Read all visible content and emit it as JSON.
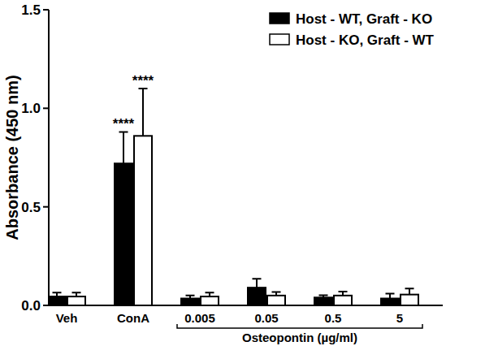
{
  "chart_data": {
    "type": "bar",
    "y_label": "Absorbance (450 nm)",
    "categories": [
      "Veh",
      "ConA",
      "0.005",
      "0.05",
      "0.5",
      "5"
    ],
    "series": [
      {
        "name": "Host - WT, Graft - KO",
        "color": "#000000",
        "values": [
          0.045,
          0.72,
          0.035,
          0.09,
          0.04,
          0.035
        ],
        "errors": [
          0.02,
          0.16,
          0.015,
          0.045,
          0.012,
          0.025
        ],
        "significance": [
          null,
          "****",
          null,
          null,
          null,
          null
        ]
      },
      {
        "name": "Host - KO, Graft - WT",
        "color": "#ffffff",
        "values": [
          0.045,
          0.86,
          0.045,
          0.05,
          0.05,
          0.055
        ],
        "errors": [
          0.02,
          0.24,
          0.02,
          0.018,
          0.02,
          0.03
        ],
        "significance": [
          null,
          "****",
          null,
          null,
          null,
          null
        ]
      }
    ],
    "annotations": [
      {
        "text": "Osteopontin (µg/ml)",
        "categories": [
          "0.005",
          "5"
        ]
      }
    ],
    "ylim": [
      0,
      1.5
    ],
    "yticks": [
      {
        "value": 0,
        "label": "0.0"
      },
      {
        "value": 0.5,
        "label": "0.5"
      },
      {
        "value": 1.0,
        "label": "1.0"
      },
      {
        "value": 1.5,
        "label": "1.5"
      }
    ],
    "grid": false,
    "legend": "top-right"
  }
}
